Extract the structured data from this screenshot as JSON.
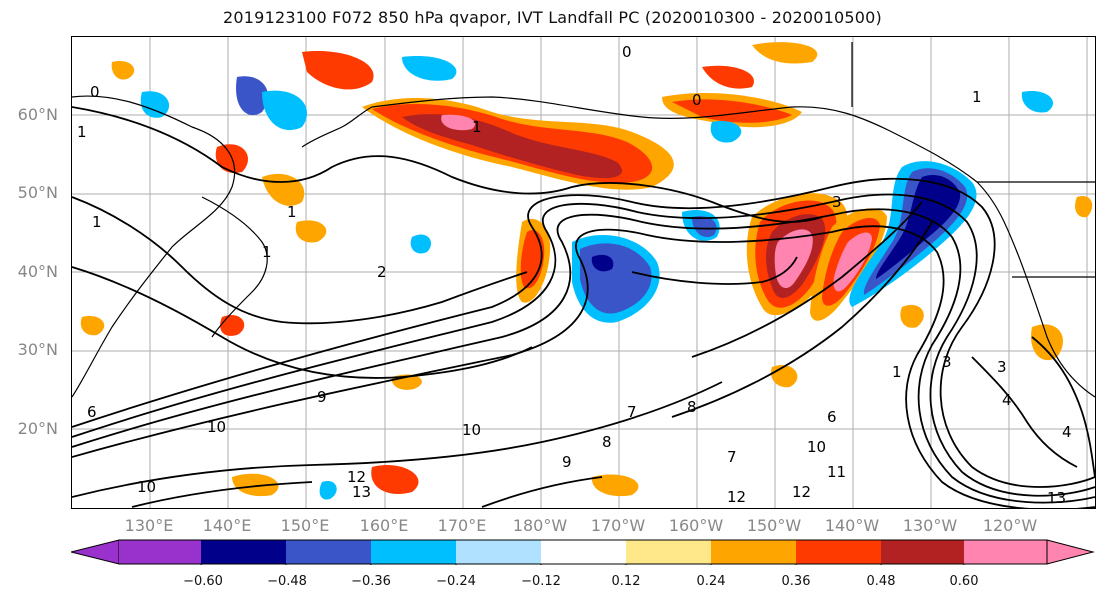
{
  "title": "2019123100 F072 850 hPa qvapor, IVT Landfall PC (2020010300 - 2020010500)",
  "lat_labels": [
    "60°N",
    "50°N",
    "40°N",
    "30°N",
    "20°N"
  ],
  "lon_labels": [
    "130°E",
    "140°E",
    "150°E",
    "160°E",
    "170°E",
    "180°W",
    "170°W",
    "160°W",
    "150°W",
    "140°W",
    "130°W",
    "120°W"
  ],
  "colorbar": {
    "ticks": [
      "−0.60",
      "−0.48",
      "−0.36",
      "−0.24",
      "−0.12",
      "0.12",
      "0.24",
      "0.36",
      "0.48",
      "0.60"
    ],
    "colors": [
      "#9932cc",
      "#00008b",
      "#3a55c8",
      "#00bfff",
      "#b0e2ff",
      "#ffffff",
      "#ffe88a",
      "#ffa500",
      "#ff3a00",
      "#b22222",
      "#ff85b0"
    ]
  },
  "contour_labels": [
    "0",
    "0",
    "0",
    "1",
    "1",
    "1",
    "1",
    "1",
    "1",
    "1",
    "2",
    "3",
    "3",
    "3",
    "4",
    "4",
    "6",
    "6",
    "7",
    "7",
    "8",
    "8",
    "9",
    "9",
    "10",
    "10",
    "10",
    "10",
    "11",
    "12",
    "12",
    "12",
    "13",
    "13"
  ]
}
